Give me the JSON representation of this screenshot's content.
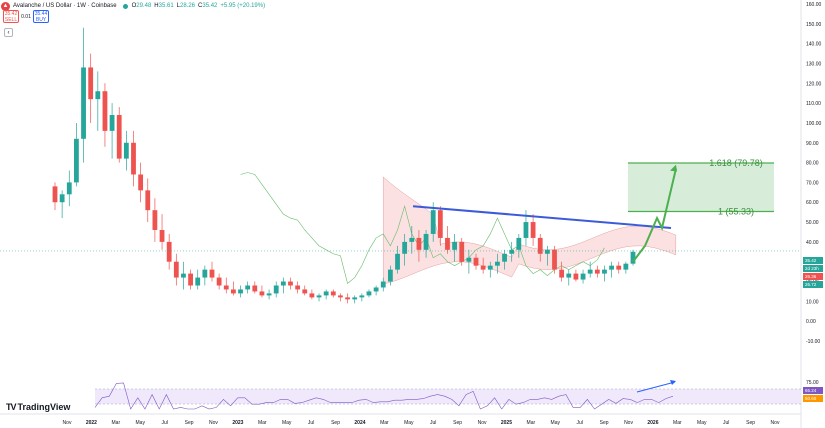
{
  "header": {
    "title": "Avalanche / US Dollar · 1W · Coinbase",
    "ohlc": [
      {
        "label": "O",
        "value": "29.48"
      },
      {
        "label": "H",
        "value": "35.61"
      },
      {
        "label": "L",
        "value": "28.26"
      },
      {
        "label": "C",
        "value": "35.42"
      }
    ],
    "change": "+5.95 (+20.19%)"
  },
  "trade": {
    "sell_price": "35.42",
    "sell_label": "SELL",
    "spread": "0.01",
    "buy_price": "35.44",
    "buy_label": "BUY"
  },
  "logo_text": "TradingView",
  "colors": {
    "up": "#26a69a",
    "down": "#ef5350",
    "trendline": "#3b5bd9",
    "fib": "#4caf50",
    "cloud": "#f8c8c8",
    "rsi_band": "#ece3fb"
  },
  "chart_data": {
    "type": "candlestick",
    "y_ticks": [
      "160.00",
      "150.00",
      "140.00",
      "130.00",
      "120.00",
      "110.00",
      "100.00",
      "90.00",
      "80.00",
      "70.00",
      "60.00",
      "50.00",
      "40.00",
      "30.00",
      "20.00",
      "10.00",
      "0.00",
      "-10.00"
    ],
    "ylim": [
      -10,
      160
    ],
    "x_ticks": [
      "Nov",
      "2022",
      "Mar",
      "May",
      "Jul",
      "Sep",
      "Nov",
      "2023",
      "Mar",
      "May",
      "Jul",
      "Sep",
      "2024",
      "Mar",
      "May",
      "Jul",
      "Sep",
      "Nov",
      "2025",
      "Mar",
      "May",
      "Jul",
      "Sep",
      "Nov",
      "2026",
      "Mar",
      "May",
      "Jul",
      "Sep",
      "Nov"
    ],
    "price_labels": [
      {
        "text": "35.42",
        "color": "#26a69a"
      },
      {
        "text": "2d 23h",
        "color": "#26a69a"
      },
      {
        "text": "26.36",
        "color": "#ef5350"
      },
      {
        "text": "26.72",
        "color": "#26a69a"
      }
    ],
    "annotations": [
      {
        "text": "1.618 (79.78)",
        "value": 79.78
      },
      {
        "text": "1 (55.33)",
        "value": 55.33
      }
    ],
    "rsi_ticks": [
      "75.00",
      "65.24",
      "50.60"
    ],
    "series": [
      {
        "values": [
          [
            68,
            70,
            56,
            60
          ],
          [
            60,
            66,
            52,
            64
          ],
          [
            64,
            76,
            58,
            70
          ],
          [
            70,
            100,
            68,
            92
          ],
          [
            92,
            148,
            80,
            128
          ],
          [
            128,
            135,
            100,
            112
          ],
          [
            112,
            126,
            96,
            116
          ],
          [
            116,
            120,
            88,
            96
          ],
          [
            96,
            110,
            82,
            104
          ],
          [
            104,
            108,
            80,
            82
          ],
          [
            82,
            96,
            76,
            90
          ],
          [
            90,
            96,
            68,
            74
          ],
          [
            74,
            80,
            60,
            66
          ],
          [
            66,
            72,
            50,
            56
          ],
          [
            56,
            62,
            40,
            46
          ],
          [
            46,
            54,
            36,
            40
          ],
          [
            40,
            44,
            26,
            30
          ],
          [
            30,
            34,
            18,
            22
          ],
          [
            22,
            30,
            16,
            24
          ],
          [
            24,
            26,
            16,
            18
          ],
          [
            18,
            26,
            16,
            22
          ],
          [
            22,
            28,
            18,
            26
          ],
          [
            26,
            30,
            20,
            22
          ],
          [
            22,
            24,
            16,
            18
          ],
          [
            18,
            22,
            14,
            16
          ],
          [
            16,
            20,
            13,
            14
          ],
          [
            14,
            18,
            12,
            16
          ],
          [
            16,
            20,
            14,
            18
          ],
          [
            18,
            20,
            14,
            15
          ],
          [
            15,
            18,
            12,
            13
          ],
          [
            13,
            16,
            11,
            14
          ],
          [
            14,
            20,
            12,
            18
          ],
          [
            18,
            22,
            14,
            20
          ],
          [
            20,
            22,
            16,
            18
          ],
          [
            18,
            20,
            14,
            16
          ],
          [
            16,
            18,
            13,
            14
          ],
          [
            14,
            16,
            11,
            12
          ],
          [
            12,
            14,
            10,
            13
          ],
          [
            13,
            16,
            11,
            15
          ],
          [
            15,
            16,
            12,
            13
          ],
          [
            13,
            14,
            10,
            12
          ],
          [
            12,
            14,
            9,
            11
          ],
          [
            11,
            13,
            9,
            12
          ],
          [
            12,
            14,
            10,
            13
          ],
          [
            13,
            16,
            12,
            15
          ],
          [
            15,
            18,
            13,
            17
          ],
          [
            17,
            22,
            15,
            20
          ],
          [
            20,
            28,
            18,
            26
          ],
          [
            26,
            38,
            24,
            34
          ],
          [
            34,
            44,
            28,
            40
          ],
          [
            40,
            48,
            34,
            42
          ],
          [
            42,
            46,
            30,
            36
          ],
          [
            36,
            46,
            32,
            44
          ],
          [
            44,
            60,
            40,
            56
          ],
          [
            56,
            58,
            38,
            42
          ],
          [
            42,
            48,
            34,
            36
          ],
          [
            36,
            44,
            30,
            40
          ],
          [
            40,
            42,
            28,
            30
          ],
          [
            30,
            36,
            24,
            32
          ],
          [
            32,
            34,
            26,
            28
          ],
          [
            28,
            32,
            24,
            26
          ],
          [
            26,
            30,
            22,
            28
          ],
          [
            28,
            34,
            24,
            30
          ],
          [
            30,
            36,
            26,
            34
          ],
          [
            34,
            40,
            30,
            36
          ],
          [
            36,
            44,
            32,
            42
          ],
          [
            42,
            56,
            38,
            50
          ],
          [
            50,
            54,
            38,
            42
          ],
          [
            42,
            44,
            30,
            34
          ],
          [
            34,
            38,
            28,
            36
          ],
          [
            36,
            38,
            24,
            26
          ],
          [
            26,
            30,
            20,
            22
          ],
          [
            22,
            26,
            18,
            24
          ],
          [
            24,
            26,
            20,
            21
          ],
          [
            21,
            26,
            19,
            24
          ],
          [
            24,
            30,
            22,
            26
          ],
          [
            26,
            28,
            22,
            24
          ],
          [
            24,
            28,
            20,
            26
          ],
          [
            26,
            30,
            22,
            28
          ],
          [
            28,
            30,
            24,
            26
          ],
          [
            26,
            30,
            24,
            29
          ],
          [
            29,
            36,
            28,
            35
          ]
        ]
      }
    ]
  }
}
